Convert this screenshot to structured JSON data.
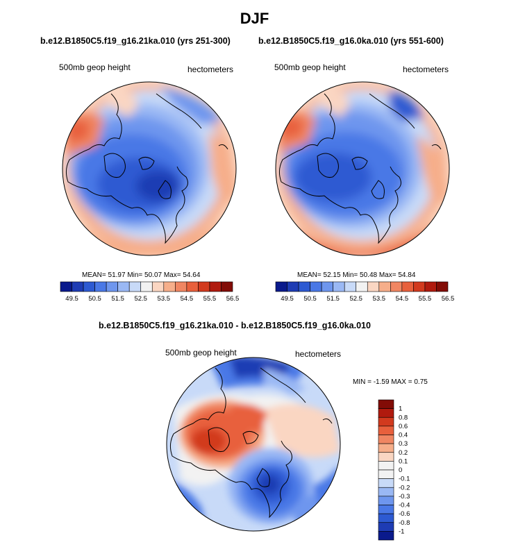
{
  "figure": {
    "title": "DJF",
    "top_left": {
      "case_title": "b.e12.B1850C5.f19_g16.21ka.010 (yrs 251-300)",
      "left_label": "500mb geop height",
      "right_label": "hectometers",
      "mean_text": "MEAN=  51.97  Min=  50.07  Max=  54.64"
    },
    "top_right": {
      "case_title": "b.e12.B1850C5.f19_g16.0ka.010 (yrs 551-600)",
      "left_label": "500mb geop height",
      "right_label": "hectometers",
      "mean_text": "MEAN=  52.15  Min=  50.48  Max=  54.84"
    },
    "bottom": {
      "case_title": "b.e12.B1850C5.f19_g16.21ka.010 - b.e12.B1850C5.f19_g16.0ka.010",
      "left_label": "500mb geop height",
      "right_label": "hectometers",
      "minmax_text": "MIN =  -1.59 MAX =   0.75"
    }
  },
  "colorbar_abs": {
    "colors": [
      "#0a1a8c",
      "#1e3cb4",
      "#2d5ad2",
      "#4a78e6",
      "#6e96ee",
      "#9ab8f4",
      "#c8daf8",
      "#f2f2f2",
      "#fad6c2",
      "#f6ae8a",
      "#f08662",
      "#e8603c",
      "#d23a1e",
      "#b01a0e",
      "#820c06"
    ],
    "labels": [
      "49.5",
      "50.5",
      "51.5",
      "52.5",
      "53.5",
      "54.5",
      "55.5",
      "56.5"
    ]
  },
  "colorbar_diff": {
    "colors": [
      "#820c06",
      "#b01a0e",
      "#d23a1e",
      "#e8603c",
      "#f08662",
      "#f6ae8a",
      "#fad6c2",
      "#f2f2f2",
      "#f2f2f2",
      "#c8daf8",
      "#9ab8f4",
      "#6e96ee",
      "#4a78e6",
      "#2d5ad2",
      "#1e3cb4",
      "#0a1a8c"
    ],
    "labels": [
      "1",
      "0.8",
      "0.6",
      "0.4",
      "0.3",
      "0.2",
      "0.1",
      "0",
      "-0.1",
      "-0.2",
      "-0.3",
      "-0.4",
      "-0.6",
      "-0.8",
      "-1"
    ]
  }
}
